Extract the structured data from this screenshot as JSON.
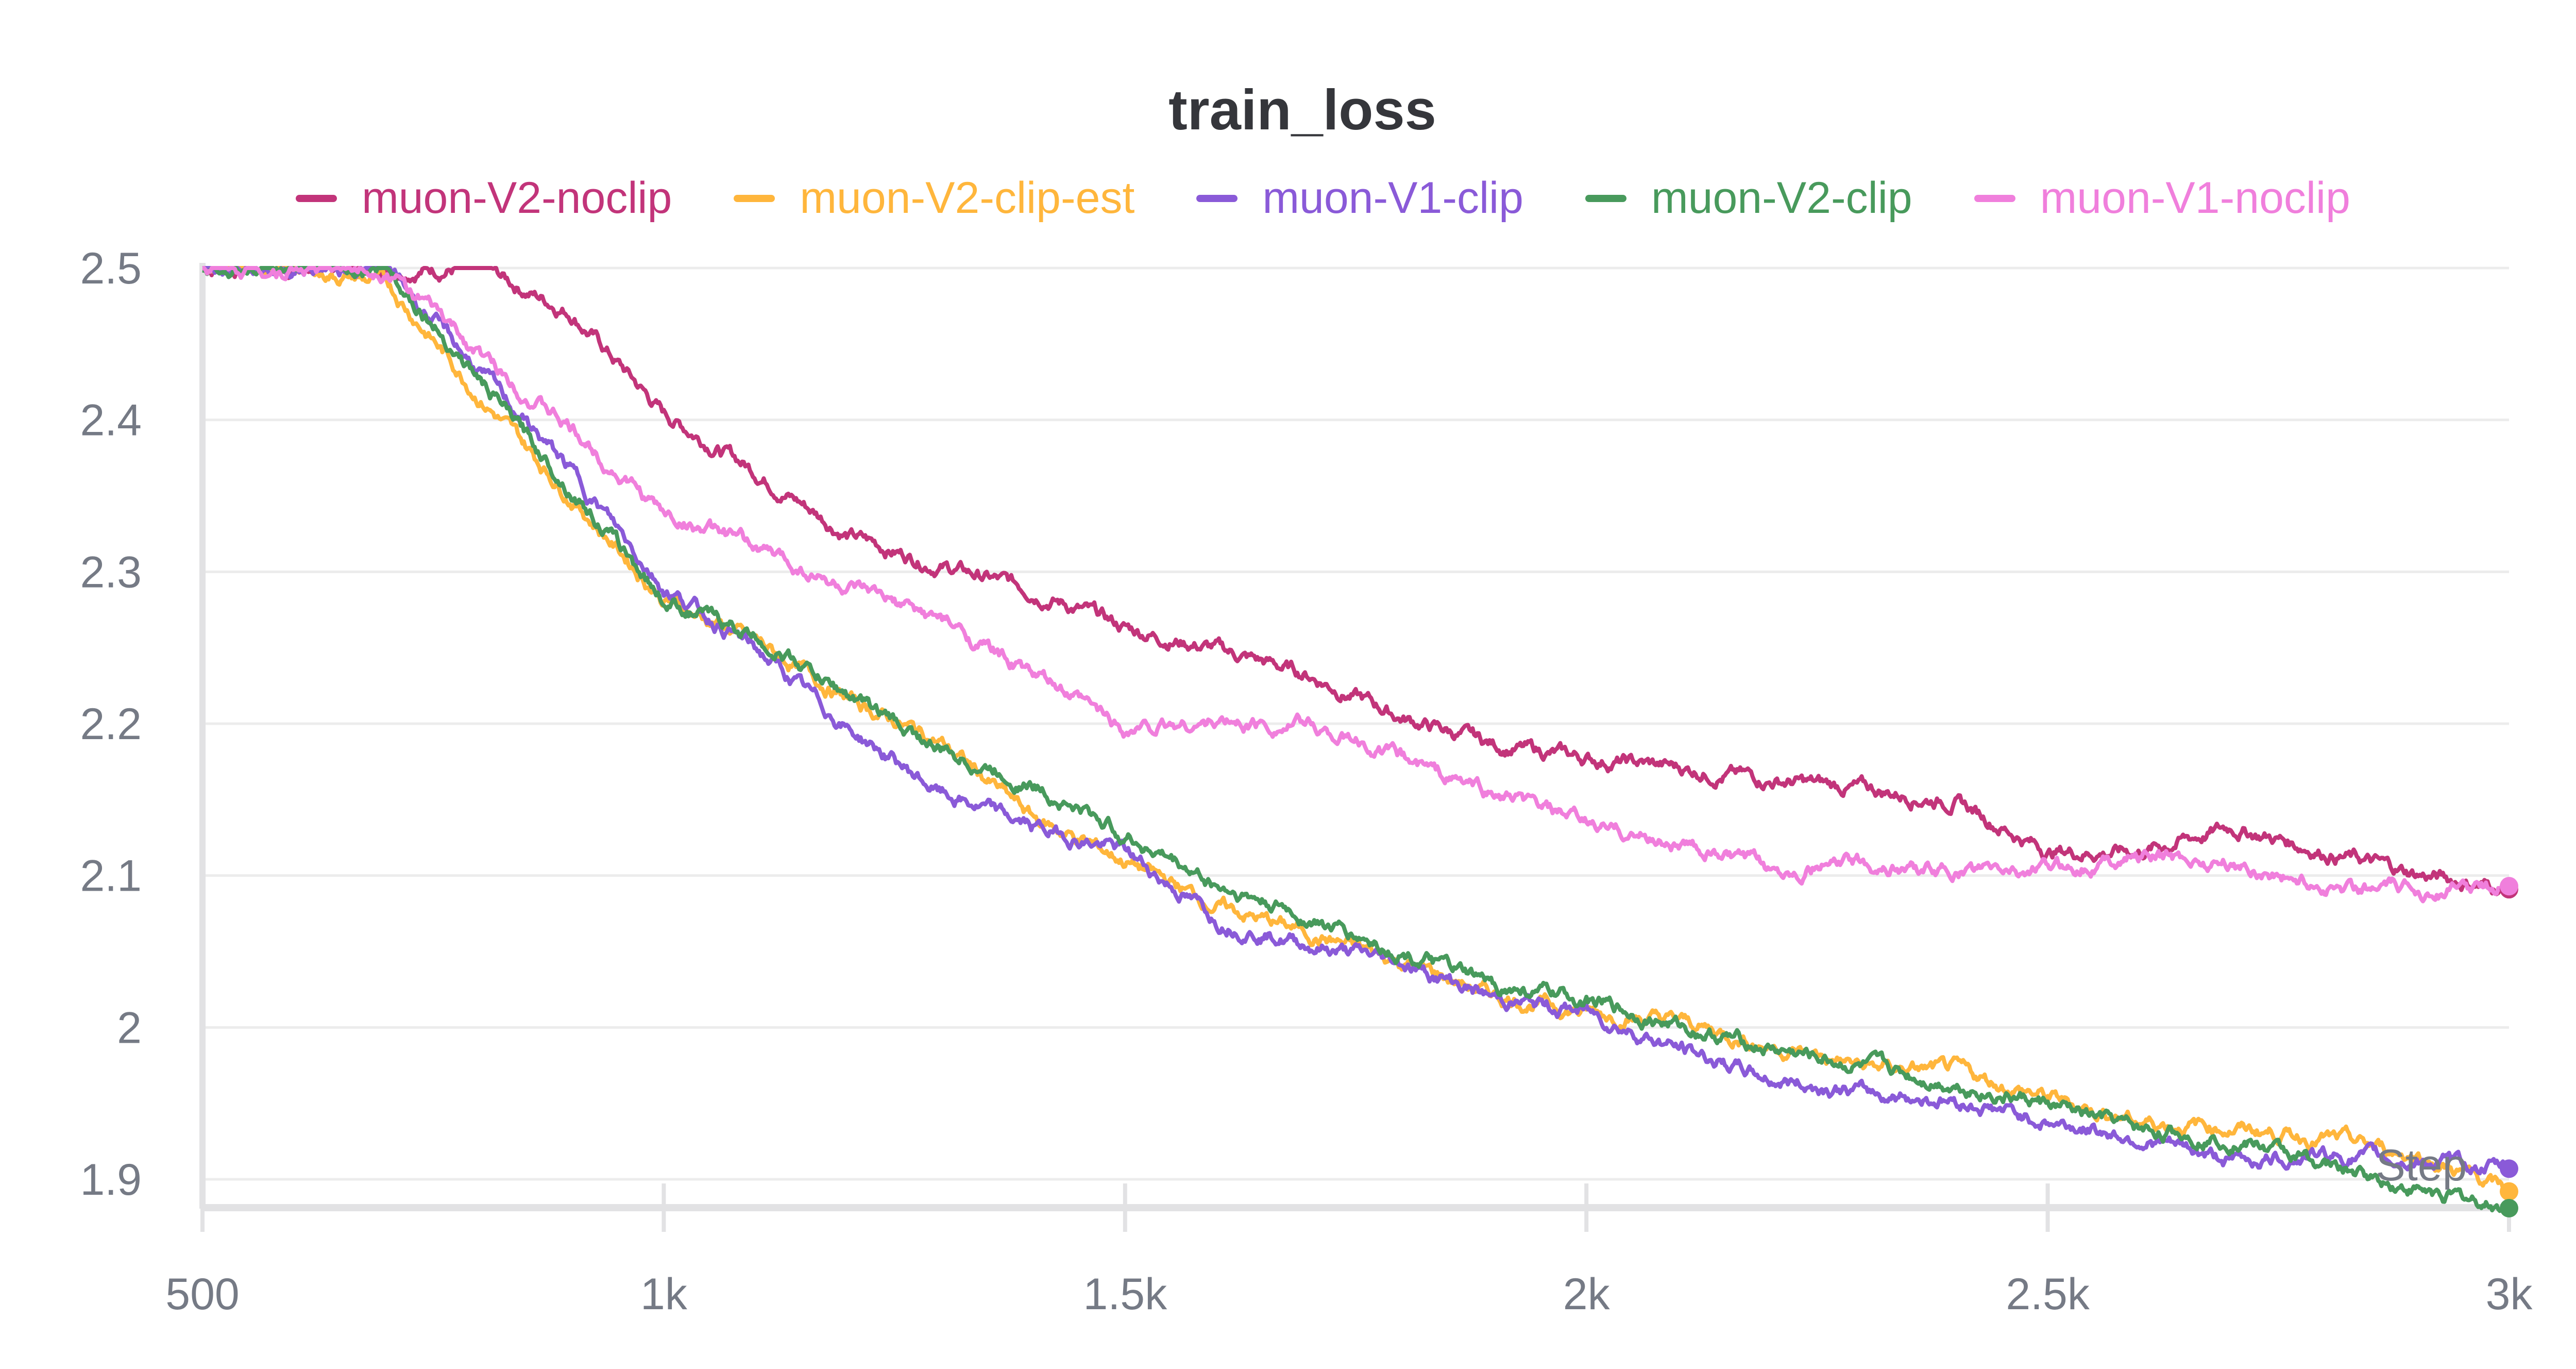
{
  "chart_data": {
    "type": "line",
    "title": "train_loss",
    "xlabel": "Step",
    "ylabel": "",
    "xlim": [
      500,
      3000
    ],
    "ylim": [
      1.88,
      2.5
    ],
    "grid": true,
    "legend_position": "top-center",
    "x_ticks": [
      500,
      1000,
      1500,
      2000,
      2500,
      3000
    ],
    "x_tick_labels": [
      "500",
      "1k",
      "1.5k",
      "2k",
      "2.5k",
      "3k"
    ],
    "y_ticks": [
      1.9,
      2.0,
      2.1,
      2.2,
      2.3,
      2.4,
      2.5
    ],
    "y_tick_labels": [
      "1.9",
      "2",
      "2.1",
      "2.2",
      "2.3",
      "2.4",
      "2.5"
    ],
    "x": [
      500,
      600,
      700,
      800,
      900,
      1000,
      1100,
      1200,
      1300,
      1400,
      1500,
      1600,
      1700,
      1800,
      1900,
      2000,
      2100,
      2200,
      2300,
      2400,
      2500,
      2600,
      2700,
      2800,
      2900,
      3000
    ],
    "series": [
      {
        "name": "muon-V2-noclip",
        "color": "#c2347a",
        "values": [
          2.5,
          2.5,
          2.5,
          2.5,
          2.471,
          2.404,
          2.366,
          2.324,
          2.304,
          2.288,
          2.263,
          2.249,
          2.232,
          2.204,
          2.186,
          2.177,
          2.171,
          2.163,
          2.157,
          2.149,
          2.116,
          2.116,
          2.132,
          2.116,
          2.101,
          2.091
        ]
      },
      {
        "name": "muon-V2-clip-est",
        "color": "#ffb63c",
        "values": [
          2.5,
          2.5,
          2.49,
          2.416,
          2.349,
          2.282,
          2.254,
          2.216,
          2.188,
          2.138,
          2.11,
          2.08,
          2.062,
          2.043,
          2.021,
          2.01,
          2.004,
          1.988,
          1.974,
          1.971,
          1.954,
          1.938,
          1.934,
          1.927,
          1.916,
          1.892
        ]
      },
      {
        "name": "muon-V1-clip",
        "color": "#8a5ad8",
        "values": [
          2.5,
          2.5,
          2.5,
          2.432,
          2.366,
          2.29,
          2.249,
          2.197,
          2.154,
          2.132,
          2.116,
          2.071,
          2.054,
          2.043,
          2.019,
          2.01,
          1.986,
          1.966,
          1.957,
          1.952,
          1.938,
          1.927,
          1.912,
          1.916,
          1.912,
          1.907
        ]
      },
      {
        "name": "muon-V2-clip",
        "color": "#489a5c",
        "values": [
          2.5,
          2.5,
          2.5,
          2.427,
          2.354,
          2.282,
          2.257,
          2.219,
          2.182,
          2.16,
          2.127,
          2.093,
          2.071,
          2.049,
          2.027,
          2.018,
          2.001,
          1.986,
          1.974,
          1.963,
          1.949,
          1.932,
          1.927,
          1.91,
          1.893,
          1.881
        ]
      },
      {
        "name": "muon-V1-noclip",
        "color": "#f07fdc",
        "values": [
          2.5,
          2.5,
          2.5,
          2.443,
          2.393,
          2.338,
          2.316,
          2.288,
          2.268,
          2.232,
          2.197,
          2.201,
          2.199,
          2.177,
          2.154,
          2.134,
          2.121,
          2.104,
          2.108,
          2.102,
          2.104,
          2.113,
          2.108,
          2.093,
          2.09,
          2.093
        ]
      }
    ]
  }
}
